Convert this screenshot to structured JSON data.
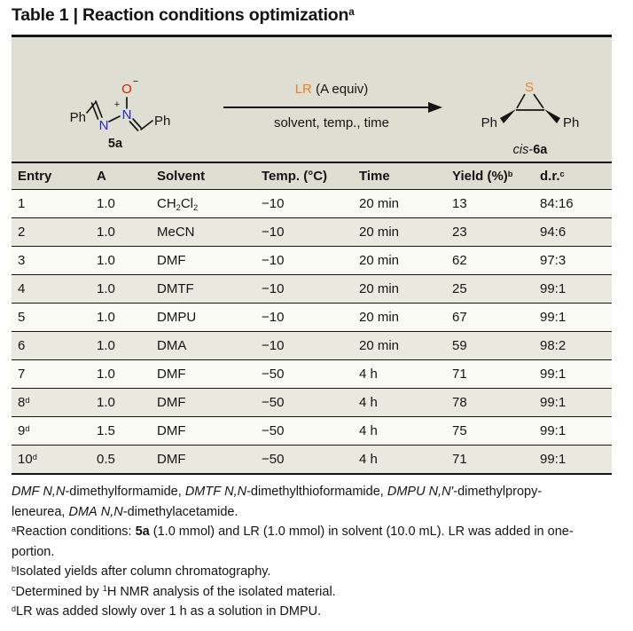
{
  "colors": {
    "panel_bg": "#dedfd2",
    "row_light": "#fbfbf5",
    "row_dark": "#e9e9e0",
    "rule": "#141414",
    "text": "#141414",
    "nitrogen_blue": "#2727cf",
    "oxygen_red": "#d42000",
    "sulfur_orange": "#ee7f22",
    "lr_orange": "#ee7f22"
  },
  "title": {
    "segments": [
      {
        "t": "Table 1 | Reaction conditions optimization"
      },
      {
        "t": "a",
        "sup": true
      }
    ]
  },
  "scheme": {
    "ph": "Ph",
    "n": "N",
    "o": "O",
    "s": "S",
    "plus": "+",
    "minus": "−",
    "reactant_label": "5a",
    "lr_label": "LR",
    "equiv_label": " (A equiv)",
    "conditions_label": "solvent, temp., time",
    "product_cis": "cis",
    "product_hyphen": "-",
    "product_bold": "6a"
  },
  "table": {
    "headers": [
      [
        {
          "t": "Entry"
        }
      ],
      [
        {
          "t": "A"
        }
      ],
      [
        {
          "t": "Solvent"
        }
      ],
      [
        {
          "t": "Temp. (°C)"
        }
      ],
      [
        {
          "t": "Time"
        }
      ],
      [
        {
          "t": "Yield (%)"
        },
        {
          "t": "b",
          "sup": true
        }
      ],
      [
        {
          "t": "d.r."
        },
        {
          "t": "c",
          "sup": true
        }
      ]
    ],
    "rows": [
      [
        [
          {
            "t": "1"
          }
        ],
        [
          {
            "t": "1.0"
          }
        ],
        [
          {
            "t": "CH"
          },
          {
            "t": "2",
            "sub": true
          },
          {
            "t": "Cl"
          },
          {
            "t": "2",
            "sub": true
          }
        ],
        [
          {
            "t": "−10"
          }
        ],
        [
          {
            "t": "20 min"
          }
        ],
        [
          {
            "t": "13"
          }
        ],
        [
          {
            "t": "84:16"
          }
        ]
      ],
      [
        [
          {
            "t": "2"
          }
        ],
        [
          {
            "t": "1.0"
          }
        ],
        [
          {
            "t": "MeCN"
          }
        ],
        [
          {
            "t": "−10"
          }
        ],
        [
          {
            "t": "20 min"
          }
        ],
        [
          {
            "t": "23"
          }
        ],
        [
          {
            "t": "94:6"
          }
        ]
      ],
      [
        [
          {
            "t": "3"
          }
        ],
        [
          {
            "t": "1.0"
          }
        ],
        [
          {
            "t": "DMF"
          }
        ],
        [
          {
            "t": "−10"
          }
        ],
        [
          {
            "t": "20 min"
          }
        ],
        [
          {
            "t": "62"
          }
        ],
        [
          {
            "t": "97:3"
          }
        ]
      ],
      [
        [
          {
            "t": "4"
          }
        ],
        [
          {
            "t": "1.0"
          }
        ],
        [
          {
            "t": "DMTF"
          }
        ],
        [
          {
            "t": "−10"
          }
        ],
        [
          {
            "t": "20 min"
          }
        ],
        [
          {
            "t": "25"
          }
        ],
        [
          {
            "t": "99:1"
          }
        ]
      ],
      [
        [
          {
            "t": "5"
          }
        ],
        [
          {
            "t": "1.0"
          }
        ],
        [
          {
            "t": "DMPU"
          }
        ],
        [
          {
            "t": "−10"
          }
        ],
        [
          {
            "t": "20 min"
          }
        ],
        [
          {
            "t": "67"
          }
        ],
        [
          {
            "t": "99:1"
          }
        ]
      ],
      [
        [
          {
            "t": "6"
          }
        ],
        [
          {
            "t": "1.0"
          }
        ],
        [
          {
            "t": "DMA"
          }
        ],
        [
          {
            "t": "−10"
          }
        ],
        [
          {
            "t": "20 min"
          }
        ],
        [
          {
            "t": "59"
          }
        ],
        [
          {
            "t": "98:2"
          }
        ]
      ],
      [
        [
          {
            "t": "7"
          }
        ],
        [
          {
            "t": "1.0"
          }
        ],
        [
          {
            "t": "DMF"
          }
        ],
        [
          {
            "t": "−50"
          }
        ],
        [
          {
            "t": "4 h"
          }
        ],
        [
          {
            "t": "71"
          }
        ],
        [
          {
            "t": "99:1"
          }
        ]
      ],
      [
        [
          {
            "t": "8"
          },
          {
            "t": "d",
            "sup": true
          }
        ],
        [
          {
            "t": "1.0"
          }
        ],
        [
          {
            "t": "DMF"
          }
        ],
        [
          {
            "t": "−50"
          }
        ],
        [
          {
            "t": "4 h"
          }
        ],
        [
          {
            "t": "78"
          }
        ],
        [
          {
            "t": "99:1"
          }
        ]
      ],
      [
        [
          {
            "t": "9"
          },
          {
            "t": "d",
            "sup": true
          }
        ],
        [
          {
            "t": "1.5"
          }
        ],
        [
          {
            "t": "DMF"
          }
        ],
        [
          {
            "t": "−50"
          }
        ],
        [
          {
            "t": "4 h"
          }
        ],
        [
          {
            "t": "75"
          }
        ],
        [
          {
            "t": "99:1"
          }
        ]
      ],
      [
        [
          {
            "t": "10"
          },
          {
            "t": "d",
            "sup": true
          }
        ],
        [
          {
            "t": "0.5"
          }
        ],
        [
          {
            "t": "DMF"
          }
        ],
        [
          {
            "t": "−50"
          }
        ],
        [
          {
            "t": "4 h"
          }
        ],
        [
          {
            "t": "71"
          }
        ],
        [
          {
            "t": "99:1"
          }
        ]
      ]
    ]
  },
  "footnotes": [
    [
      {
        "t": "DMF",
        "italic": true
      },
      {
        "t": " "
      },
      {
        "t": "N,N",
        "italic": true
      },
      {
        "t": "-dimethylformamide, "
      },
      {
        "t": "DMTF",
        "italic": true
      },
      {
        "t": " "
      },
      {
        "t": "N,N",
        "italic": true
      },
      {
        "t": "-dimethylthioformamide, "
      },
      {
        "t": "DMPU",
        "italic": true
      },
      {
        "t": " "
      },
      {
        "t": "N,N′",
        "italic": true
      },
      {
        "t": "-dimethylpropy-"
      },
      {
        "br": true
      },
      {
        "t": "leneurea, "
      },
      {
        "t": "DMA",
        "italic": true
      },
      {
        "t": " "
      },
      {
        "t": "N,N",
        "italic": true
      },
      {
        "t": "-dimethylacetamide."
      }
    ],
    [
      {
        "t": "a",
        "sup": true
      },
      {
        "t": "Reaction conditions: "
      },
      {
        "t": "5a",
        "bold": true
      },
      {
        "t": " (1.0 mmol) and LR (1.0 mmol) in solvent (10.0 mL). LR was added in one-"
      },
      {
        "br": true
      },
      {
        "t": "portion."
      }
    ],
    [
      {
        "t": "b",
        "sup": true
      },
      {
        "t": "Isolated yields after column chromatography."
      }
    ],
    [
      {
        "t": "c",
        "sup": true
      },
      {
        "t": "Determined by "
      },
      {
        "t": "1",
        "sup": true
      },
      {
        "t": "H NMR analysis of the isolated material."
      }
    ],
    [
      {
        "t": "d",
        "sup": true
      },
      {
        "t": "LR was added slowly over 1 h as a solution in DMPU."
      }
    ]
  ]
}
